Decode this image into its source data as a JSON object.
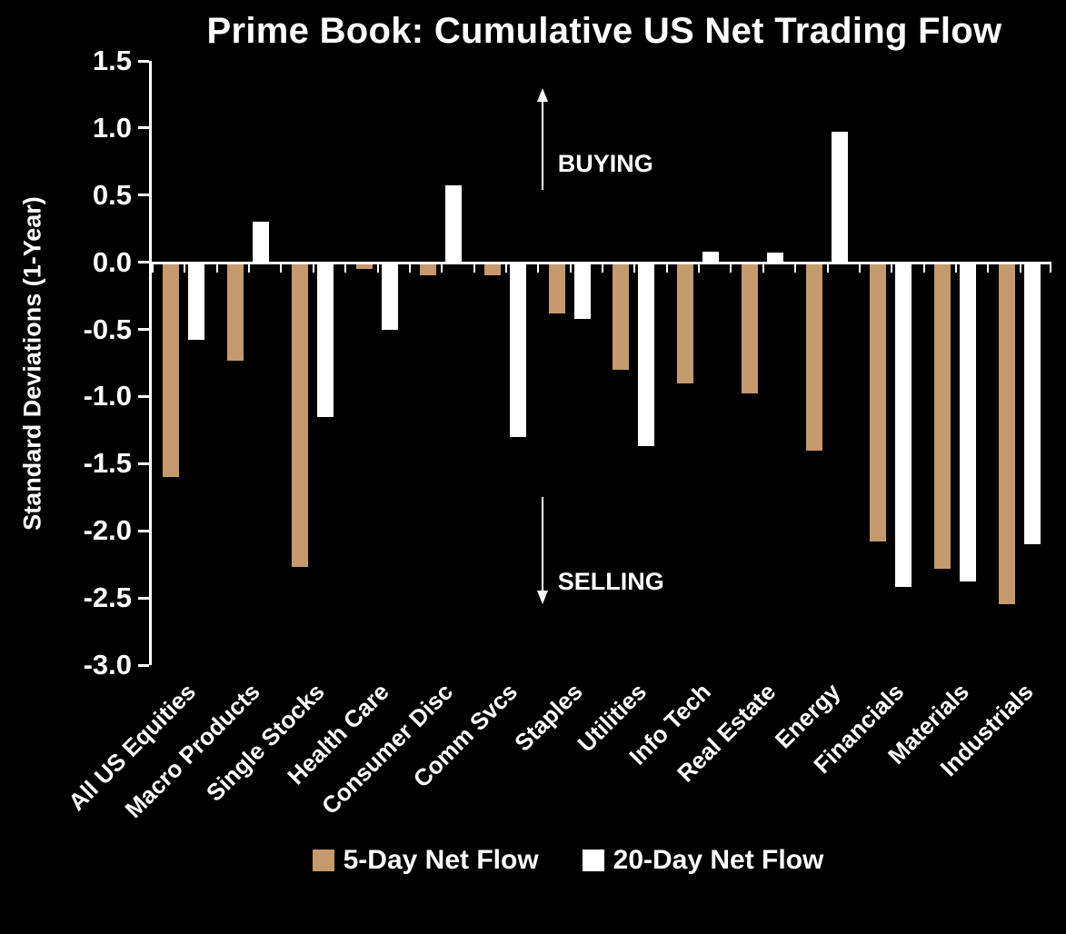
{
  "chart_data": {
    "type": "bar",
    "title": "Prime Book: Cumulative US Net Trading Flow",
    "ylabel": "Standard Deviations (1-Year)",
    "ylim": [
      -3.0,
      1.5
    ],
    "ytick_step": 0.5,
    "grid": false,
    "legend_position": "bottom",
    "background_color": "#000000",
    "categories": [
      "All US Equities",
      "Macro Products",
      "Single Stocks",
      "Health Care",
      "Consumer Disc",
      "Comm Svcs",
      "Staples",
      "Utilities",
      "Info Tech",
      "Real Estate",
      "Energy",
      "Financials",
      "Materials",
      "Industrials"
    ],
    "series": [
      {
        "name": "5-Day Net Flow",
        "color": "#c49a6c",
        "values": [
          -1.6,
          -0.73,
          -2.27,
          -0.05,
          -0.1,
          -0.1,
          -0.38,
          -0.8,
          -0.9,
          -0.98,
          -1.4,
          -2.08,
          -2.28,
          -2.55
        ]
      },
      {
        "name": "20-Day Net Flow",
        "color": "#ffffff",
        "values": [
          -0.58,
          0.3,
          -1.15,
          -0.5,
          0.57,
          -1.3,
          -0.42,
          -1.37,
          0.08,
          0.07,
          0.97,
          -2.42,
          -2.38,
          -2.1
        ]
      }
    ],
    "annotations": {
      "buying": "BUYING",
      "selling": "SELLING"
    }
  }
}
